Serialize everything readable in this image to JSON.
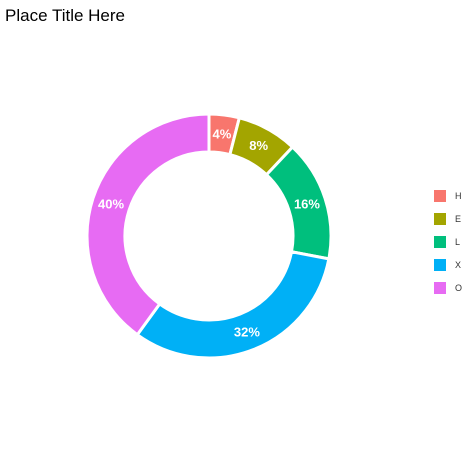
{
  "title": "Place Title Here",
  "chart_data": {
    "type": "pie",
    "variant": "donut",
    "title": "Place Title Here",
    "categories": [
      "H",
      "E",
      "L",
      "X",
      "O"
    ],
    "values": [
      4,
      8,
      16,
      32,
      40
    ],
    "labels": [
      "4%",
      "8%",
      "16%",
      "32%",
      "40%"
    ],
    "colors": [
      "#F8766D",
      "#A3A500",
      "#00BF7D",
      "#00B0F6",
      "#E76BF3"
    ],
    "legend_position": "right",
    "start_angle": "top",
    "direction": "clockwise",
    "slice_border_color": "#ffffff",
    "label_color": "#ffffff",
    "grid": false
  }
}
